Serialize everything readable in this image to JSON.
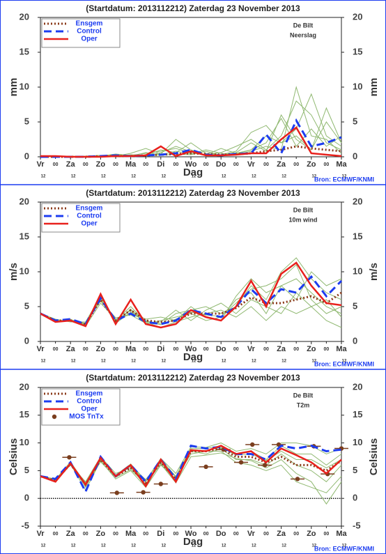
{
  "chart_data": [
    {
      "type": "line",
      "title": "(Startdatum: 2013112212)   Zaterdag 23 November 2013",
      "location": "De Bilt",
      "parameter": "Neerslag",
      "source": "Bron: ECMWF/KNMI",
      "ylabel": "mm",
      "xlabel": "Dag",
      "x": [
        0,
        12,
        24,
        36,
        48,
        60,
        72,
        84,
        96,
        108,
        120,
        132,
        144,
        156,
        168,
        180,
        192,
        204,
        216,
        228,
        240
      ],
      "xlim": [
        0,
        240
      ],
      "ylim": [
        0,
        20
      ],
      "yticks": [
        0,
        5,
        10,
        15,
        20
      ],
      "xticks": [
        {
          "value": 0,
          "label": "Vr"
        },
        {
          "value": 24,
          "label": "Za"
        },
        {
          "value": 48,
          "label": "Zo"
        },
        {
          "value": 72,
          "label": "Ma"
        },
        {
          "value": 96,
          "label": "Di"
        },
        {
          "value": 120,
          "label": "Wo"
        },
        {
          "value": 144,
          "label": "Do"
        },
        {
          "value": 168,
          "label": "Vr"
        },
        {
          "value": 192,
          "label": "Za"
        },
        {
          "value": 216,
          "label": "Zo"
        },
        {
          "value": 240,
          "label": "Ma"
        }
      ],
      "xticks_minor": [
        {
          "value": 12,
          "label": "00"
        },
        {
          "value": 36,
          "label": "00"
        },
        {
          "value": 60,
          "label": "00"
        },
        {
          "value": 84,
          "label": "00"
        },
        {
          "value": 108,
          "label": "00"
        },
        {
          "value": 132,
          "label": "00"
        },
        {
          "value": 156,
          "label": "00"
        },
        {
          "value": 180,
          "label": "00"
        },
        {
          "value": 204,
          "label": "00"
        },
        {
          "value": 228,
          "label": "00"
        }
      ],
      "xticks_hour": [
        {
          "value": 0,
          "label": "12"
        },
        {
          "value": 24,
          "label": "12"
        },
        {
          "value": 48,
          "label": "12"
        },
        {
          "value": 72,
          "label": "12"
        },
        {
          "value": 96,
          "label": "12"
        },
        {
          "value": 120,
          "label": "12"
        },
        {
          "value": 144,
          "label": "12"
        },
        {
          "value": 168,
          "label": "12"
        },
        {
          "value": 192,
          "label": "12"
        },
        {
          "value": 216,
          "label": "12"
        },
        {
          "value": 240,
          "label": "12"
        }
      ],
      "ensemble_color": "#8fb870",
      "ensemble": [
        [
          0,
          0,
          0,
          0,
          0.1,
          0.3,
          0.2,
          0.5,
          0.8,
          1.2,
          0.5,
          0.3,
          0.6,
          1.5,
          2.5,
          1,
          3,
          8,
          6,
          2,
          1
        ],
        [
          0,
          0,
          0,
          0.1,
          0.2,
          0.1,
          0.5,
          1.2,
          0.4,
          2.5,
          1,
          0.2,
          0.3,
          0.8,
          3.5,
          4.5,
          2,
          3,
          1,
          5,
          2
        ],
        [
          0,
          0,
          0,
          0,
          0,
          0.1,
          0.3,
          0.2,
          1,
          0.6,
          2,
          0.5,
          0.2,
          0.4,
          1,
          2,
          5.5,
          1.5,
          4,
          1.5,
          3
        ],
        [
          0,
          0,
          0.1,
          0,
          0.2,
          0.1,
          0.1,
          0.6,
          0.3,
          0.8,
          0.4,
          1,
          0.5,
          0.3,
          0.8,
          1.5,
          1,
          10,
          3,
          2.5,
          0.5
        ],
        [
          0,
          0,
          0,
          0,
          0.1,
          0.4,
          0.2,
          0.1,
          0.6,
          1.5,
          0.7,
          0.3,
          1.2,
          0.5,
          1,
          3,
          2,
          4,
          9,
          3,
          1.5
        ],
        [
          0,
          0,
          0,
          0,
          0,
          0.2,
          0.1,
          0.3,
          0.2,
          0.4,
          0.3,
          0.8,
          0.2,
          0.6,
          2,
          0.8,
          6,
          2.5,
          1,
          7,
          2
        ]
      ],
      "series": [
        {
          "name": "Ensgem",
          "color": "#8b3a1a",
          "style": "dotted",
          "values": [
            0,
            0,
            0,
            0,
            0.1,
            0.1,
            0.1,
            0.2,
            0.3,
            0.4,
            0.5,
            0.4,
            0.3,
            0.4,
            0.5,
            0.8,
            1,
            1.5,
            1.2,
            1,
            0.8
          ]
        },
        {
          "name": "Control",
          "color": "#1c3cf0",
          "style": "dashed",
          "values": [
            0,
            0,
            0,
            0,
            0.1,
            0.2,
            0.1,
            0.2,
            0.3,
            0.5,
            1,
            0.3,
            0.2,
            0.4,
            0.5,
            3.2,
            0.5,
            5.2,
            1.5,
            2,
            2.8
          ]
        },
        {
          "name": "Oper",
          "color": "#e8201c",
          "style": "solid",
          "values": [
            0.1,
            0.1,
            0,
            0,
            0,
            0.1,
            0.1,
            0.2,
            1.5,
            0.1,
            0.8,
            0.2,
            0.2,
            0.3,
            0.5,
            0.5,
            2.5,
            4.2,
            0.5,
            0.3,
            0.1
          ]
        }
      ]
    },
    {
      "type": "line",
      "title": "(Startdatum: 2013112212)   Zaterdag 23 November 2013",
      "location": "De Bilt",
      "parameter": "10m wind",
      "source": "Bron: ECMWF/KNMI",
      "ylabel": "m/s",
      "xlabel": "Dag",
      "x": [
        0,
        12,
        24,
        36,
        48,
        60,
        72,
        84,
        96,
        108,
        120,
        132,
        144,
        156,
        168,
        180,
        192,
        204,
        216,
        228,
        240
      ],
      "xlim": [
        0,
        240
      ],
      "ylim": [
        0,
        20
      ],
      "yticks": [
        0,
        5,
        10,
        15,
        20
      ],
      "xticks": [
        {
          "value": 0,
          "label": "Vr"
        },
        {
          "value": 24,
          "label": "Za"
        },
        {
          "value": 48,
          "label": "Zo"
        },
        {
          "value": 72,
          "label": "Ma"
        },
        {
          "value": 96,
          "label": "Di"
        },
        {
          "value": 120,
          "label": "Wo"
        },
        {
          "value": 144,
          "label": "Do"
        },
        {
          "value": 168,
          "label": "Vr"
        },
        {
          "value": 192,
          "label": "Za"
        },
        {
          "value": 216,
          "label": "Zo"
        },
        {
          "value": 240,
          "label": "Ma"
        }
      ],
      "xticks_minor": [
        {
          "value": 12,
          "label": "00"
        },
        {
          "value": 36,
          "label": "00"
        },
        {
          "value": 60,
          "label": "00"
        },
        {
          "value": 84,
          "label": "00"
        },
        {
          "value": 108,
          "label": "00"
        },
        {
          "value": 132,
          "label": "00"
        },
        {
          "value": 156,
          "label": "00"
        },
        {
          "value": 180,
          "label": "00"
        },
        {
          "value": 204,
          "label": "00"
        },
        {
          "value": 228,
          "label": "00"
        }
      ],
      "xticks_hour": [
        {
          "value": 0,
          "label": "12"
        },
        {
          "value": 24,
          "label": "12"
        },
        {
          "value": 48,
          "label": "12"
        },
        {
          "value": 72,
          "label": "12"
        },
        {
          "value": 96,
          "label": "12"
        },
        {
          "value": 120,
          "label": "12"
        },
        {
          "value": 144,
          "label": "12"
        },
        {
          "value": 168,
          "label": "12"
        },
        {
          "value": 192,
          "label": "12"
        },
        {
          "value": 216,
          "label": "12"
        },
        {
          "value": 240,
          "label": "12"
        }
      ],
      "ensemble_color": "#8fb870",
      "ensemble": [
        [
          4,
          3,
          3,
          2.5,
          6,
          2.8,
          4.5,
          2.5,
          3,
          3.5,
          4,
          3,
          3.5,
          6,
          7,
          4,
          8,
          9,
          7,
          5,
          4
        ],
        [
          4,
          2.8,
          3.2,
          2.2,
          5.5,
          3.2,
          4,
          3,
          2.5,
          4,
          4.5,
          5,
          4,
          5,
          8,
          6,
          10,
          12,
          9,
          7,
          6
        ],
        [
          4,
          3.2,
          2.8,
          2.8,
          6.5,
          3,
          5,
          2.8,
          2,
          2.8,
          3.5,
          4,
          4.5,
          3.5,
          5,
          3,
          5,
          4,
          5,
          3,
          2
        ],
        [
          4,
          3,
          3,
          2.4,
          6.2,
          2.6,
          4.2,
          3.2,
          3.5,
          3,
          5,
          3.5,
          3,
          6.5,
          9,
          7,
          8,
          6,
          10,
          8,
          9
        ],
        [
          4,
          2.9,
          3.1,
          2.6,
          5.8,
          3.4,
          3.8,
          2.6,
          2.8,
          4.5,
          3,
          4.5,
          5.5,
          4,
          6,
          5,
          4,
          7,
          5,
          6,
          3.5
        ],
        [
          4,
          3.1,
          2.9,
          2.3,
          6.4,
          2.9,
          4.6,
          2.9,
          2.4,
          3.2,
          4.2,
          3.8,
          3.6,
          5.5,
          7.5,
          8,
          9,
          11,
          6,
          4,
          5
        ]
      ],
      "series": [
        {
          "name": "Ensgem",
          "color": "#8b3a1a",
          "style": "dotted",
          "values": [
            4,
            3,
            3,
            2.5,
            6,
            3,
            4.5,
            3,
            2.8,
            3,
            4,
            4,
            4,
            4.8,
            6.3,
            5.5,
            5.5,
            6,
            6.5,
            5.5,
            7
          ]
        },
        {
          "name": "Control",
          "color": "#1c3cf0",
          "style": "dashed",
          "values": [
            4,
            3,
            3.2,
            2.5,
            6.2,
            3,
            4,
            2.8,
            2.5,
            3,
            4.5,
            4,
            3.5,
            5,
            7.5,
            5.5,
            7.5,
            7,
            9.3,
            6.5,
            8.7
          ]
        },
        {
          "name": "Oper",
          "color": "#e8201c",
          "style": "solid",
          "values": [
            4,
            2.8,
            3,
            2.2,
            6.8,
            2.5,
            6,
            2.5,
            2,
            2.5,
            4.5,
            3.5,
            3,
            5,
            8.7,
            5,
            9.7,
            11.3,
            8,
            5.5,
            5.2
          ]
        }
      ]
    },
    {
      "type": "line",
      "title": "(Startdatum: 2013112212)   Zaterdag 23 November 2013",
      "location": "De Bilt",
      "parameter": "T2m",
      "source": "Bron: ECMWF/KNMI",
      "ylabel": "Celsius",
      "xlabel": "Dag",
      "x": [
        0,
        12,
        24,
        36,
        48,
        60,
        72,
        84,
        96,
        108,
        120,
        132,
        144,
        156,
        168,
        180,
        192,
        204,
        216,
        228,
        240
      ],
      "xlim": [
        0,
        240
      ],
      "ylim": [
        -5,
        20
      ],
      "yticks": [
        -5,
        0,
        5,
        10,
        15,
        20
      ],
      "hline": 0,
      "xticks": [
        {
          "value": 0,
          "label": "Vr"
        },
        {
          "value": 24,
          "label": "Za"
        },
        {
          "value": 48,
          "label": "Zo"
        },
        {
          "value": 72,
          "label": "Ma"
        },
        {
          "value": 96,
          "label": "Di"
        },
        {
          "value": 120,
          "label": "Wo"
        },
        {
          "value": 144,
          "label": "Do"
        },
        {
          "value": 168,
          "label": "Vr"
        },
        {
          "value": 192,
          "label": "Za"
        },
        {
          "value": 216,
          "label": "Zo"
        },
        {
          "value": 240,
          "label": "Ma"
        }
      ],
      "xticks_minor": [
        {
          "value": 12,
          "label": "00"
        },
        {
          "value": 36,
          "label": "00"
        },
        {
          "value": 60,
          "label": "00"
        },
        {
          "value": 84,
          "label": "00"
        },
        {
          "value": 108,
          "label": "00"
        },
        {
          "value": 132,
          "label": "00"
        },
        {
          "value": 156,
          "label": "00"
        },
        {
          "value": 180,
          "label": "00"
        },
        {
          "value": 204,
          "label": "00"
        },
        {
          "value": 228,
          "label": "00"
        }
      ],
      "xticks_hour": [
        {
          "value": 0,
          "label": "12"
        },
        {
          "value": 24,
          "label": "12"
        },
        {
          "value": 48,
          "label": "12"
        },
        {
          "value": 72,
          "label": "12"
        },
        {
          "value": 96,
          "label": "12"
        },
        {
          "value": 120,
          "label": "12"
        },
        {
          "value": 144,
          "label": "12"
        },
        {
          "value": 168,
          "label": "12"
        },
        {
          "value": 192,
          "label": "12"
        },
        {
          "value": 216,
          "label": "12"
        },
        {
          "value": 240,
          "label": "12"
        }
      ],
      "ensemble_color": "#8fb870",
      "ensemble": [
        [
          4,
          3,
          6.5,
          2,
          7,
          4,
          6,
          3,
          6.5,
          3,
          8.5,
          8,
          9,
          7,
          7,
          6,
          8,
          6,
          5,
          3,
          6
        ],
        [
          4,
          3.5,
          6,
          3,
          7.5,
          4.5,
          5.5,
          2.5,
          7,
          4,
          9,
          9,
          9.5,
          8,
          8.5,
          7,
          9.5,
          8,
          8,
          6,
          8
        ],
        [
          4,
          3,
          6.2,
          1.5,
          6.8,
          3.5,
          5,
          2,
          6,
          3.5,
          8,
          8.5,
          8.5,
          6.5,
          6,
          5,
          6,
          3,
          2,
          1,
          4
        ],
        [
          4,
          3.3,
          6.4,
          2.8,
          7.2,
          4.2,
          6.2,
          3.2,
          7.2,
          4.5,
          9.3,
          9.2,
          10,
          8.5,
          9,
          8,
          10,
          10,
          9.5,
          8,
          9
        ],
        [
          4,
          3.1,
          6,
          2.2,
          6.6,
          3.8,
          5.2,
          2.6,
          6.2,
          2.8,
          7.5,
          7.8,
          8.2,
          7.2,
          6.8,
          5.5,
          7,
          4.5,
          3,
          -1,
          3
        ],
        [
          4,
          3.4,
          6.6,
          2.6,
          7.4,
          4.1,
          5.8,
          3.4,
          6.8,
          3.8,
          8.8,
          8.6,
          9.2,
          7.8,
          8,
          6.8,
          8.5,
          7,
          7,
          5.5,
          7
        ]
      ],
      "series": [
        {
          "name": "Ensgem",
          "color": "#8b3a1a",
          "style": "dotted",
          "values": [
            4,
            3.2,
            6.2,
            2.5,
            7,
            4,
            5.5,
            2.8,
            6.5,
            3.5,
            8.5,
            8.5,
            9,
            7.5,
            7.5,
            6.5,
            7.5,
            6,
            6,
            5,
            6.8
          ]
        },
        {
          "name": "Control",
          "color": "#1c3cf0",
          "style": "dashed",
          "values": [
            4,
            3.5,
            6.5,
            1.2,
            7.5,
            4,
            6,
            3,
            7,
            3.5,
            9.5,
            9,
            9.3,
            8,
            8,
            7,
            9.5,
            9,
            9.5,
            8.5,
            8.8
          ]
        },
        {
          "name": "Oper",
          "color": "#e8201c",
          "style": "solid",
          "values": [
            4,
            3,
            6.3,
            2.5,
            7.3,
            4,
            6,
            2.2,
            7,
            3,
            8.7,
            8.5,
            9.5,
            8,
            8.5,
            6.5,
            9,
            7.8,
            6.5,
            4.5,
            7
          ]
        }
      ],
      "mos": {
        "name": "MOS TnTx",
        "color": "#7a3e1e",
        "x": [
          23,
          61,
          82,
          96,
          132,
          146,
          160,
          169,
          179,
          190,
          205,
          218,
          229,
          240
        ],
        "values": [
          7.4,
          1,
          1.1,
          2.6,
          5.7,
          8.8,
          6.5,
          9.7,
          6,
          9.7,
          3.5,
          9.4,
          4.4,
          9
        ]
      }
    }
  ]
}
